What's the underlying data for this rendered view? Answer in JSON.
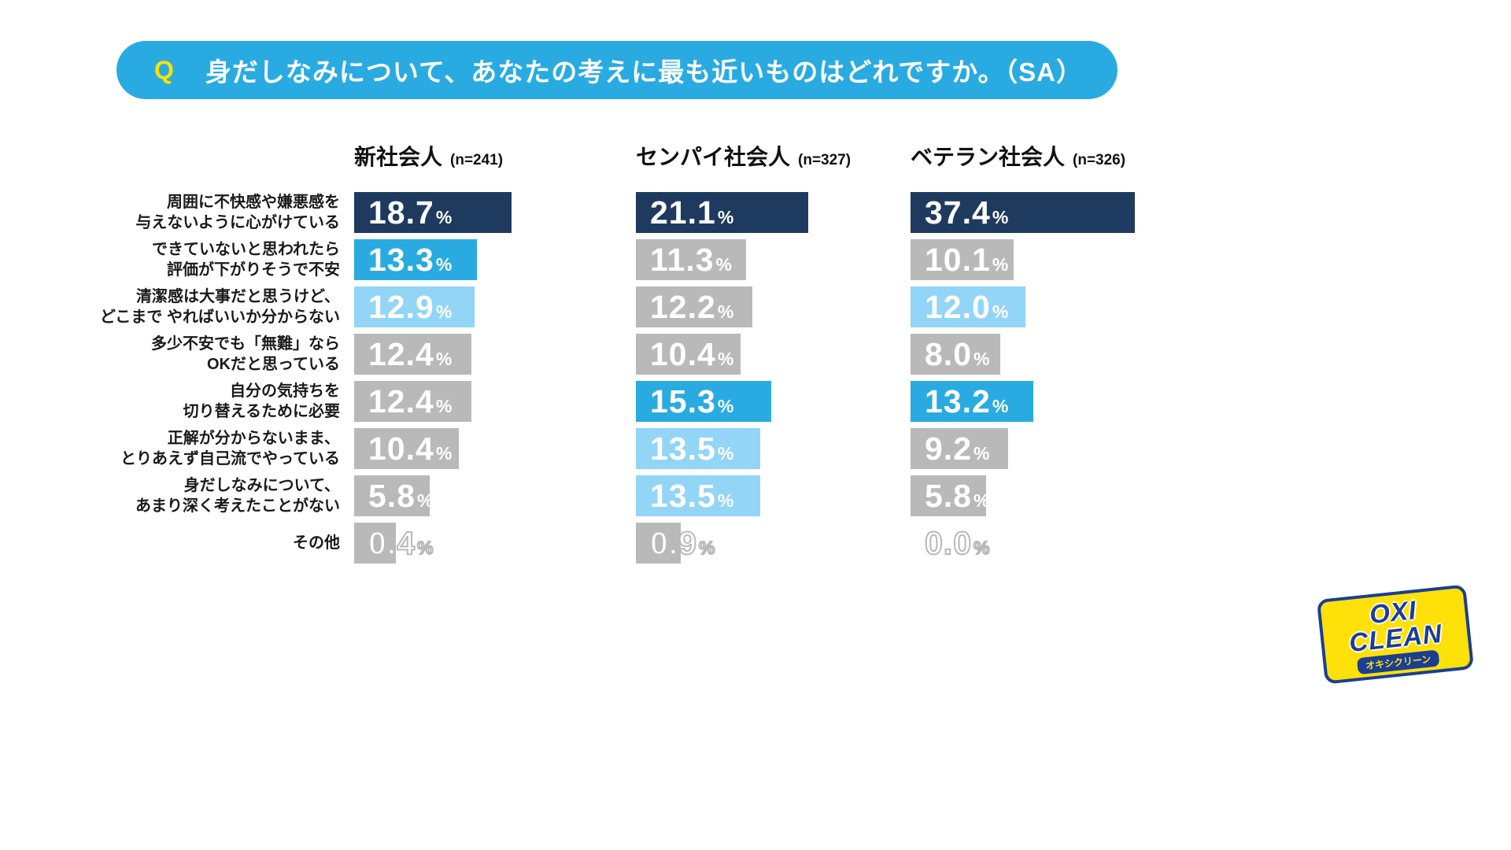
{
  "question": {
    "badge": "Q",
    "text": "身だしなみについて、あなたの考えに最も近いものはどれですか。（SA）"
  },
  "palette": {
    "navy": "#1e3a5f",
    "blue": "#29abe2",
    "lightblue": "#93d5f7",
    "gray": "#b9b9b9",
    "banner_bg": "#29abe2",
    "badge_yellow": "#ffe100",
    "logo_blue": "#1b3e94",
    "logo_yellow": "#ffe10a"
  },
  "chart_data": {
    "type": "bar",
    "orientation": "horizontal",
    "unit": "%",
    "title": "身だしなみについて、あなたの考えに最も近いものはどれですか。（SA）",
    "categories": [
      "周囲に不快感や嫌悪感を\n与えないように心がけている",
      "できていないと思われたら\n評価が下がりそうで不安",
      "清潔感は大事だと思うけど、\nどこまで やればいいか分からない",
      "多少不安でも「無難」なら\nOKだと思っている",
      "自分の気持ちを\n切り替えるために必要",
      "正解が分からないまま、\nとりあえず自己流でやっている",
      "身だしなみについて、\nあまり深く考えたことがない",
      "その他"
    ],
    "series": [
      {
        "name": "新社会人",
        "n_label": "(n=241)",
        "values": [
          18.7,
          13.3,
          12.9,
          12.4,
          12.4,
          10.4,
          5.8,
          0.4
        ],
        "colors": [
          "navy",
          "blue",
          "lightblue",
          "gray",
          "gray",
          "gray",
          "gray",
          "gray"
        ]
      },
      {
        "name": "センパイ社会人",
        "n_label": "(n=327)",
        "values": [
          21.1,
          11.3,
          12.2,
          10.4,
          15.3,
          13.5,
          13.5,
          0.9
        ],
        "colors": [
          "navy",
          "gray",
          "gray",
          "gray",
          "blue",
          "lightblue",
          "lightblue",
          "gray"
        ]
      },
      {
        "name": "ベテラン社会人",
        "n_label": "(n=326)",
        "values": [
          37.4,
          10.1,
          12.0,
          8.0,
          13.2,
          9.2,
          5.8,
          0.0
        ],
        "colors": [
          "navy",
          "gray",
          "lightblue",
          "gray",
          "blue",
          "gray",
          "gray",
          "none"
        ]
      }
    ]
  },
  "logo": {
    "line1": "OXI",
    "line2": "CLEAN",
    "tagline": "オキシクリーン"
  }
}
